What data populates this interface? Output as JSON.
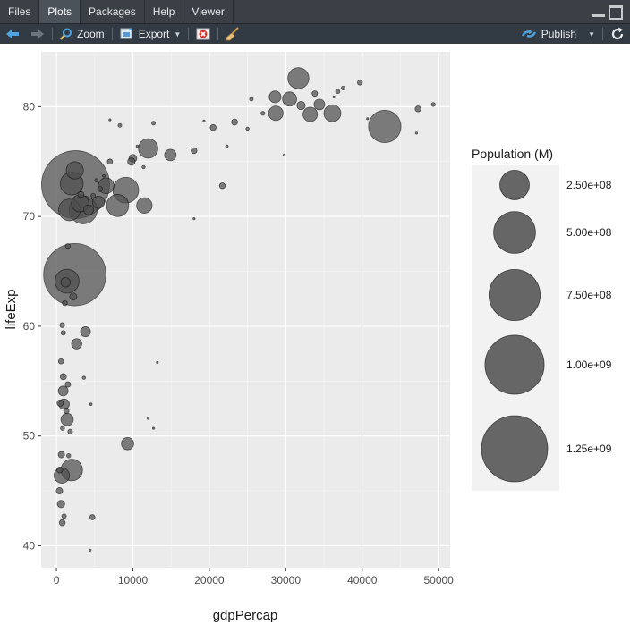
{
  "tabs": [
    {
      "label": "Files",
      "active": false
    },
    {
      "label": "Plots",
      "active": true
    },
    {
      "label": "Packages",
      "active": false
    },
    {
      "label": "Help",
      "active": false
    },
    {
      "label": "Viewer",
      "active": false
    }
  ],
  "toolbar": {
    "zoom_label": "Zoom",
    "export_label": "Export",
    "publish_label": "Publish"
  },
  "chart_data": {
    "type": "scatter",
    "xlabel": "gdpPercap",
    "ylabel": "lifeExp",
    "xlim": [
      -2000,
      51500
    ],
    "ylim": [
      38,
      85
    ],
    "x_ticks": [
      0,
      10000,
      20000,
      30000,
      40000,
      50000
    ],
    "x_tick_labels": [
      "0",
      "10000",
      "20000",
      "30000",
      "40000",
      "50000"
    ],
    "y_ticks": [
      40,
      50,
      60,
      70,
      80
    ],
    "y_tick_labels": [
      "40",
      "50",
      "60",
      "70",
      "80"
    ],
    "grid": true,
    "legend_title": "Population (M)",
    "legend_position": "right",
    "legend": [
      {
        "label": "2.50e+08",
        "pop": 250000000
      },
      {
        "label": "5.00e+08",
        "pop": 500000000
      },
      {
        "label": "7.50e+08",
        "pop": 750000000
      },
      {
        "label": "1.00e+09",
        "pop": 1000000000
      },
      {
        "label": "1.25e+09",
        "pop": 1250000000
      }
    ],
    "point_color": "#4d4d4d",
    "panel_color": "#ebebeb",
    "points": [
      [
        2500,
        72.9,
        1318700000
      ],
      [
        2400,
        64.7,
        1110400000
      ],
      [
        42950,
        78.2,
        301100000
      ],
      [
        3500,
        70.6,
        223500000
      ],
      [
        9070,
        72.4,
        190000000
      ],
      [
        1390,
        64.1,
        165000000
      ],
      [
        2000,
        73.0,
        150400000
      ],
      [
        1700,
        70.6,
        135000000
      ],
      [
        31650,
        82.6,
        127500000
      ],
      [
        12000,
        76.2,
        108700000
      ],
      [
        2000,
        46.9,
        135000000
      ],
      [
        8000,
        71.0,
        141000000
      ],
      [
        36100,
        79.4,
        82400000
      ],
      [
        28700,
        79.4,
        60800000
      ],
      [
        33200,
        79.3,
        60400000
      ],
      [
        30500,
        80.7,
        58100000
      ],
      [
        28600,
        80.9,
        40500000
      ],
      [
        11500,
        71.0,
        69000000
      ],
      [
        3100,
        71.2,
        85300000
      ],
      [
        2400,
        74.2,
        85000000
      ],
      [
        6500,
        72.8,
        71000000
      ],
      [
        5500,
        71.3,
        42000000
      ],
      [
        3800,
        59.5,
        28900000
      ],
      [
        2650,
        58.4,
        31000000
      ],
      [
        9300,
        49.3,
        43900000
      ],
      [
        1000,
        52.9,
        32000000
      ],
      [
        700,
        46.4,
        68900000
      ],
      [
        1400,
        51.5,
        44000000
      ],
      [
        880,
        54.1,
        28000000
      ],
      [
        1200,
        64.0,
        26000000
      ],
      [
        4200,
        70.6,
        28000000
      ],
      [
        10000,
        75.3,
        18000000
      ],
      [
        14900,
        75.6,
        38500000
      ],
      [
        21700,
        72.8,
        10000000
      ],
      [
        34400,
        80.2,
        33400000
      ],
      [
        47300,
        79.8,
        10000000
      ],
      [
        49300,
        80.2,
        4600000
      ],
      [
        39700,
        82.2,
        7500000
      ],
      [
        37500,
        81.7,
        4100000
      ],
      [
        36800,
        81.4,
        5500000
      ],
      [
        33800,
        81.2,
        9000000
      ],
      [
        32000,
        80.1,
        20400000
      ],
      [
        25500,
        80.7,
        4100000
      ],
      [
        23300,
        78.6,
        10700000
      ],
      [
        27000,
        79.4,
        4400000
      ],
      [
        22300,
        76.4,
        2000000
      ],
      [
        20500,
        78.1,
        10600000
      ],
      [
        18000,
        76.0,
        10000000
      ],
      [
        12700,
        78.5,
        4100000
      ],
      [
        9800,
        75.0,
        16000000
      ],
      [
        7000,
        75.0,
        8000000
      ],
      [
        5700,
        72.5,
        7300000
      ],
      [
        6200,
        73.7,
        2000000
      ],
      [
        11400,
        74.5,
        3000000
      ],
      [
        8300,
        78.3,
        4000000
      ],
      [
        7000,
        78.8,
        1000000
      ],
      [
        10600,
        76.4,
        2000000
      ],
      [
        3200,
        72.0,
        10700000
      ],
      [
        4800,
        71.9,
        6000000
      ],
      [
        5200,
        73.3,
        3000000
      ],
      [
        1500,
        67.3,
        7000000
      ],
      [
        2200,
        62.7,
        15000000
      ],
      [
        1100,
        62.1,
        7000000
      ],
      [
        760,
        60.1,
        7000000
      ],
      [
        900,
        59.4,
        6000000
      ],
      [
        600,
        56.8,
        8000000
      ],
      [
        900,
        55.4,
        11000000
      ],
      [
        1500,
        54.7,
        9000000
      ],
      [
        500,
        53.0,
        12000000
      ],
      [
        1300,
        52.3,
        8500000
      ],
      [
        800,
        50.7,
        5000000
      ],
      [
        1800,
        50.4,
        6400000
      ],
      [
        650,
        48.3,
        12000000
      ],
      [
        1600,
        48.2,
        5000000
      ],
      [
        430,
        46.9,
        10000000
      ],
      [
        400,
        45.0,
        12000000
      ],
      [
        600,
        43.8,
        16000000
      ],
      [
        1000,
        42.7,
        6000000
      ],
      [
        760,
        42.1,
        10300000
      ],
      [
        4700,
        42.6,
        8000000
      ],
      [
        3600,
        55.3,
        3000000
      ],
      [
        4500,
        52.9,
        2000000
      ],
      [
        12000,
        51.6,
        1000000
      ],
      [
        12700,
        50.7,
        1000000
      ],
      [
        13200,
        56.7,
        1000000
      ],
      [
        4400,
        39.6,
        1000000
      ],
      [
        18000,
        69.8,
        1000000
      ],
      [
        19300,
        78.7,
        1000000
      ],
      [
        25000,
        78.0,
        3000000
      ],
      [
        29800,
        75.6,
        1000000
      ],
      [
        36300,
        80.9,
        1000000
      ],
      [
        40700,
        78.9,
        1000000
      ],
      [
        47100,
        77.6,
        1000000
      ]
    ]
  }
}
